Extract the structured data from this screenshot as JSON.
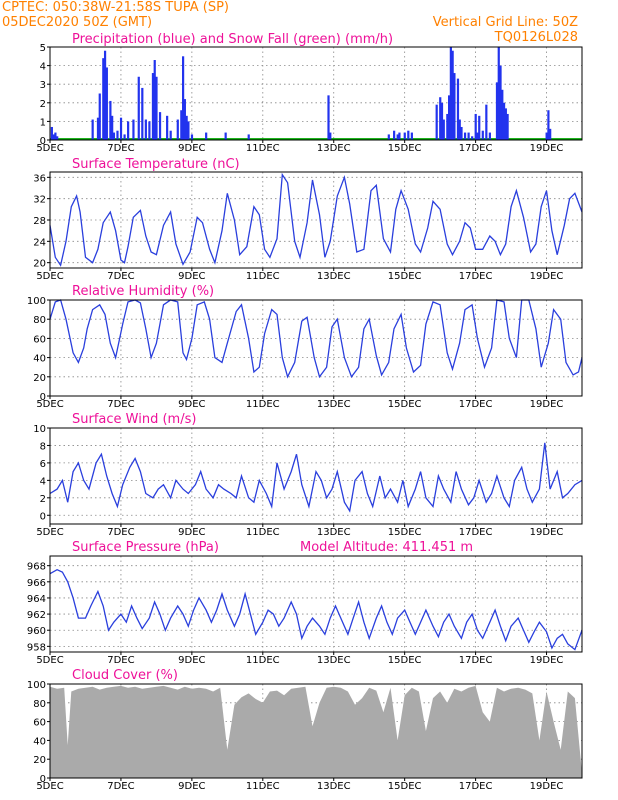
{
  "header": {
    "line1": "CPTEC:  050:38W-21:58S  TUPA (SP)",
    "line2": "05DEC2020 50Z (GMT)",
    "grid_note": "Vertical Grid Line: 50Z",
    "code": "TQ0126L028"
  },
  "colors": {
    "header": "#ff8000",
    "title": "#ee1199",
    "line": "#2a3fdd",
    "precip": "#2233ee",
    "snow": "#00aa00",
    "cloud": "#aaaaaa"
  },
  "x_axis": {
    "tick_labels": [
      "5DEC",
      "7DEC",
      "9DEC",
      "11DEC",
      "13DEC",
      "15DEC",
      "17DEC",
      "19DEC"
    ],
    "tick_days": [
      0,
      2,
      4,
      6,
      8,
      10,
      12,
      14
    ],
    "day_range": [
      0,
      15
    ]
  },
  "chart_data": [
    {
      "type": "bar",
      "title": "Precipitation (blue) and Snow Fall (green) (mm/h)",
      "ylim": [
        0,
        5
      ],
      "yticks": [
        0,
        1,
        2,
        3,
        4,
        5
      ],
      "snow_value": 0.05,
      "x_days": [
        0.05,
        0.1,
        0.15,
        0.2,
        1.2,
        1.35,
        1.4,
        1.5,
        1.55,
        1.6,
        1.7,
        1.75,
        1.8,
        1.9,
        2.0,
        2.1,
        2.2,
        2.35,
        2.5,
        2.6,
        2.7,
        2.8,
        2.9,
        2.95,
        3.0,
        3.1,
        3.3,
        3.4,
        3.6,
        3.7,
        3.75,
        3.8,
        3.85,
        3.9,
        4.0,
        4.4,
        4.95,
        5.6,
        7.85,
        7.9,
        9.55,
        9.7,
        9.8,
        9.85,
        10.0,
        10.1,
        10.2,
        10.9,
        11.0,
        11.05,
        11.1,
        11.2,
        11.25,
        11.3,
        11.35,
        11.4,
        11.5,
        11.55,
        11.6,
        11.7,
        11.8,
        11.9,
        12.0,
        12.05,
        12.1,
        12.2,
        12.3,
        12.4,
        12.6,
        12.65,
        12.7,
        12.75,
        12.8,
        12.85,
        12.9,
        14.0,
        14.05,
        14.1
      ],
      "values": [
        0.7,
        0.3,
        0.4,
        0.2,
        1.1,
        1.2,
        2.5,
        4.4,
        4.8,
        3.9,
        2.1,
        1.3,
        0.4,
        0.5,
        1.2,
        0.3,
        1.0,
        1.1,
        3.4,
        2.8,
        1.1,
        1.0,
        3.6,
        4.3,
        3.4,
        1.5,
        1.3,
        0.5,
        1.1,
        1.6,
        4.5,
        2.2,
        1.3,
        1.0,
        0.3,
        0.4,
        0.4,
        0.3,
        2.4,
        0.4,
        0.3,
        0.5,
        0.3,
        0.4,
        0.4,
        0.5,
        0.4,
        1.9,
        2.3,
        2.0,
        1.1,
        1.4,
        2.4,
        5.0,
        4.8,
        3.6,
        3.3,
        1.1,
        0.7,
        0.4,
        0.4,
        0.2,
        1.4,
        0.4,
        1.3,
        0.5,
        1.9,
        0.4,
        3.1,
        5.0,
        4.0,
        2.7,
        2.0,
        1.7,
        1.4,
        0.4,
        1.6,
        0.6
      ]
    },
    {
      "type": "line",
      "title": "Surface Temperature (nC)",
      "ylim": [
        19,
        37
      ],
      "yticks": [
        20,
        24,
        28,
        32,
        36
      ],
      "x_days": [
        0,
        0.15,
        0.3,
        0.45,
        0.6,
        0.75,
        0.85,
        1,
        1.2,
        1.35,
        1.5,
        1.7,
        1.85,
        2,
        2.1,
        2.2,
        2.35,
        2.55,
        2.7,
        2.85,
        3,
        3.2,
        3.4,
        3.55,
        3.75,
        3.95,
        4.15,
        4.3,
        4.5,
        4.65,
        4.85,
        5,
        5.2,
        5.35,
        5.55,
        5.75,
        5.9,
        6.05,
        6.2,
        6.4,
        6.55,
        6.7,
        6.9,
        7.05,
        7.25,
        7.4,
        7.6,
        7.75,
        7.9,
        8.1,
        8.3,
        8.45,
        8.65,
        8.85,
        9.05,
        9.2,
        9.4,
        9.6,
        9.75,
        9.9,
        10.1,
        10.3,
        10.45,
        10.65,
        10.8,
        11,
        11.2,
        11.35,
        11.55,
        11.7,
        11.85,
        12,
        12.2,
        12.4,
        12.55,
        12.7,
        12.85,
        13,
        13.15,
        13.35,
        13.55,
        13.7,
        13.85,
        14,
        14.15,
        14.3,
        14.5,
        14.65,
        14.8,
        15
      ],
      "values": [
        27,
        21,
        19.5,
        24,
        30.5,
        32.5,
        29.5,
        21,
        20,
        22.5,
        27.5,
        29.5,
        26,
        20.5,
        20,
        23,
        28.5,
        29.8,
        25,
        22,
        21.5,
        27,
        29.5,
        23.5,
        19.7,
        22,
        28.5,
        27.5,
        22.5,
        20,
        26,
        33,
        28,
        21.5,
        23,
        30.5,
        29,
        22.5,
        21,
        24.5,
        36.5,
        35,
        24,
        21,
        27.5,
        35.5,
        29,
        21,
        24,
        32.5,
        36,
        31,
        22,
        22.5,
        33.5,
        34.5,
        24.5,
        22,
        30,
        33.5,
        30,
        23.5,
        22,
        26.5,
        31.5,
        30,
        23.5,
        21.5,
        24,
        27.5,
        26.5,
        22.5,
        22.5,
        25,
        24,
        21.5,
        23.5,
        30.5,
        33.5,
        28.5,
        22,
        23.5,
        30.5,
        33.5,
        26,
        21.5,
        27,
        32,
        33,
        29.5
      ]
    },
    {
      "type": "line",
      "title": "Relative Humidity (%)",
      "ylim": [
        0,
        100
      ],
      "yticks": [
        0,
        20,
        40,
        60,
        80,
        100
      ],
      "x_days": [
        0,
        0.15,
        0.3,
        0.45,
        0.65,
        0.8,
        0.95,
        1.05,
        1.2,
        1.4,
        1.55,
        1.7,
        1.85,
        2.05,
        2.2,
        2.4,
        2.55,
        2.7,
        2.85,
        3,
        3.2,
        3.4,
        3.6,
        3.75,
        3.85,
        4,
        4.15,
        4.35,
        4.5,
        4.65,
        4.85,
        5,
        5.25,
        5.4,
        5.6,
        5.75,
        5.9,
        6.05,
        6.25,
        6.4,
        6.55,
        6.7,
        6.9,
        7.1,
        7.25,
        7.45,
        7.6,
        7.8,
        7.95,
        8.1,
        8.3,
        8.5,
        8.7,
        8.85,
        9,
        9.2,
        9.35,
        9.55,
        9.7,
        9.9,
        10.05,
        10.25,
        10.45,
        10.6,
        10.8,
        11,
        11.2,
        11.35,
        11.55,
        11.7,
        11.9,
        12.05,
        12.25,
        12.45,
        12.6,
        12.8,
        12.95,
        13.15,
        13.3,
        13.5,
        13.7,
        13.85,
        14.05,
        14.2,
        14.4,
        14.55,
        14.75,
        14.9,
        15
      ],
      "values": [
        80,
        98,
        100,
        80,
        45,
        35,
        50,
        70,
        90,
        95,
        85,
        55,
        40,
        75,
        98,
        100,
        97,
        70,
        40,
        55,
        95,
        100,
        98,
        45,
        38,
        60,
        95,
        98,
        80,
        40,
        35,
        55,
        88,
        95,
        60,
        25,
        30,
        65,
        90,
        85,
        40,
        20,
        35,
        78,
        82,
        40,
        20,
        30,
        72,
        80,
        40,
        20,
        30,
        70,
        80,
        42,
        22,
        35,
        70,
        85,
        50,
        25,
        32,
        75,
        98,
        95,
        45,
        28,
        55,
        90,
        95,
        60,
        30,
        50,
        100,
        98,
        60,
        40,
        100,
        100,
        70,
        30,
        55,
        90,
        80,
        35,
        22,
        25,
        40
      ]
    },
    {
      "type": "line",
      "title": "Surface Wind (m/s)",
      "ylim": [
        -1,
        10
      ],
      "yticks": [
        0,
        2,
        4,
        6,
        8,
        10
      ],
      "x_days": [
        0,
        0.2,
        0.35,
        0.5,
        0.65,
        0.8,
        0.95,
        1.1,
        1.3,
        1.45,
        1.6,
        1.75,
        1.9,
        2.05,
        2.25,
        2.4,
        2.55,
        2.7,
        2.9,
        3.05,
        3.2,
        3.4,
        3.55,
        3.75,
        3.9,
        4.1,
        4.25,
        4.4,
        4.6,
        4.75,
        4.9,
        5.1,
        5.25,
        5.4,
        5.6,
        5.75,
        5.9,
        6.1,
        6.25,
        6.4,
        6.6,
        6.8,
        6.95,
        7.1,
        7.3,
        7.5,
        7.65,
        7.8,
        7.95,
        8.1,
        8.3,
        8.45,
        8.6,
        8.8,
        8.95,
        9.1,
        9.3,
        9.45,
        9.6,
        9.8,
        9.95,
        10.1,
        10.3,
        10.45,
        10.6,
        10.8,
        10.95,
        11.1,
        11.3,
        11.45,
        11.6,
        11.8,
        11.95,
        12.1,
        12.3,
        12.45,
        12.6,
        12.8,
        12.95,
        13.1,
        13.3,
        13.45,
        13.6,
        13.8,
        13.95,
        14.1,
        14.3,
        14.45,
        14.6,
        14.8,
        15
      ],
      "values": [
        2.5,
        3,
        4,
        1.5,
        5,
        6,
        4,
        3,
        6,
        7,
        4.5,
        2.5,
        1,
        3.5,
        5.5,
        6.5,
        5,
        2.5,
        2,
        3,
        3.5,
        2,
        4,
        3,
        2.5,
        3.5,
        5,
        3,
        2,
        3.5,
        3,
        2.5,
        2,
        4.5,
        2,
        1.5,
        4,
        2.5,
        1,
        6,
        3,
        5,
        7,
        3.5,
        1,
        5,
        4,
        2,
        3,
        5,
        1.5,
        0.5,
        4,
        5,
        2.5,
        1,
        4.5,
        2,
        3,
        1.5,
        4,
        1,
        3,
        5,
        2,
        1,
        4.5,
        3,
        1.5,
        5,
        3,
        1.2,
        2,
        4,
        1.5,
        2.5,
        4.5,
        2,
        1,
        4,
        5.5,
        3,
        1.5,
        3,
        8.3,
        3,
        5,
        2,
        2.5,
        3.5,
        4
      ]
    },
    {
      "type": "line",
      "title": "Surface Pressure (hPa)",
      "annotation": "Model Altitude: 411.451 m",
      "ylim": [
        957.3,
        969.2
      ],
      "yticks": [
        958,
        960,
        962,
        964,
        966,
        968
      ],
      "x_days": [
        0,
        0.2,
        0.35,
        0.5,
        0.65,
        0.8,
        1,
        1.15,
        1.35,
        1.5,
        1.65,
        1.8,
        2,
        2.15,
        2.3,
        2.45,
        2.6,
        2.8,
        2.95,
        3.1,
        3.25,
        3.4,
        3.6,
        3.75,
        3.9,
        4.05,
        4.2,
        4.4,
        4.55,
        4.7,
        4.85,
        5,
        5.2,
        5.35,
        5.5,
        5.65,
        5.8,
        6,
        6.15,
        6.3,
        6.45,
        6.6,
        6.8,
        6.95,
        7.1,
        7.25,
        7.4,
        7.6,
        7.75,
        7.9,
        8.05,
        8.2,
        8.4,
        8.55,
        8.7,
        8.85,
        9,
        9.2,
        9.35,
        9.5,
        9.65,
        9.8,
        10,
        10.15,
        10.3,
        10.45,
        10.6,
        10.8,
        10.95,
        11.1,
        11.25,
        11.4,
        11.6,
        11.75,
        11.9,
        12.05,
        12.2,
        12.4,
        12.55,
        12.7,
        12.85,
        13,
        13.2,
        13.35,
        13.5,
        13.65,
        13.8,
        14,
        14.15,
        14.3,
        14.45,
        14.6,
        14.8,
        15
      ],
      "values": [
        967,
        967.5,
        967.2,
        966,
        964,
        961.5,
        961.5,
        963,
        964.8,
        963,
        960,
        961,
        962,
        961,
        963,
        961.5,
        960.2,
        961.5,
        963.5,
        962,
        960,
        961.5,
        963,
        962,
        960.5,
        962.5,
        964,
        962.5,
        961,
        962.5,
        964.5,
        962.5,
        960.5,
        962,
        964.5,
        962,
        959.5,
        961,
        962.5,
        962,
        960.5,
        961.5,
        963.5,
        962,
        959,
        960.5,
        961.5,
        960.5,
        959.5,
        961.5,
        963,
        961.5,
        959.5,
        961.5,
        963.5,
        961,
        959,
        961.5,
        963,
        961,
        959.5,
        961.5,
        962.5,
        961,
        959.5,
        961,
        962.5,
        960.5,
        959.2,
        961,
        962,
        960.5,
        959,
        961,
        962,
        960,
        959,
        961,
        962.5,
        960.5,
        958.7,
        960.5,
        961.5,
        960,
        958.5,
        959.8,
        961,
        959.8,
        957.8,
        959,
        959.5,
        958.3,
        957.6,
        960
      ]
    },
    {
      "type": "area",
      "title": "Cloud Cover (%)",
      "ylim": [
        0,
        100
      ],
      "yticks": [
        0,
        20,
        40,
        60,
        80,
        100
      ],
      "x_days": [
        0,
        0.2,
        0.4,
        0.5,
        0.6,
        0.8,
        1,
        1.2,
        1.4,
        1.6,
        1.8,
        2,
        2.2,
        2.4,
        2.6,
        2.8,
        3,
        3.2,
        3.4,
        3.6,
        3.8,
        4,
        4.2,
        4.4,
        4.6,
        4.8,
        5,
        5.2,
        5.4,
        5.6,
        5.8,
        6,
        6.2,
        6.4,
        6.6,
        6.8,
        7,
        7.2,
        7.4,
        7.6,
        7.8,
        8,
        8.2,
        8.4,
        8.6,
        8.8,
        9,
        9.2,
        9.4,
        9.6,
        9.8,
        10,
        10.2,
        10.4,
        10.6,
        10.8,
        11,
        11.2,
        11.4,
        11.6,
        11.8,
        12,
        12.2,
        12.4,
        12.6,
        12.8,
        13,
        13.2,
        13.4,
        13.6,
        13.8,
        14,
        14.2,
        14.4,
        14.6,
        14.8,
        15
      ],
      "values": [
        97,
        95,
        96,
        35,
        92,
        95,
        96,
        97,
        94,
        96,
        97,
        98,
        96,
        97,
        95,
        96,
        97,
        98,
        96,
        94,
        97,
        95,
        96,
        95,
        92,
        96,
        30,
        78,
        86,
        90,
        84,
        80,
        92,
        93,
        88,
        95,
        96,
        97,
        55,
        80,
        96,
        97,
        96,
        92,
        78,
        85,
        96,
        93,
        70,
        96,
        40,
        88,
        96,
        92,
        50,
        85,
        92,
        80,
        95,
        92,
        96,
        98,
        70,
        60,
        96,
        92,
        95,
        96,
        94,
        90,
        40,
        92,
        60,
        30,
        92,
        85,
        5
      ]
    }
  ]
}
